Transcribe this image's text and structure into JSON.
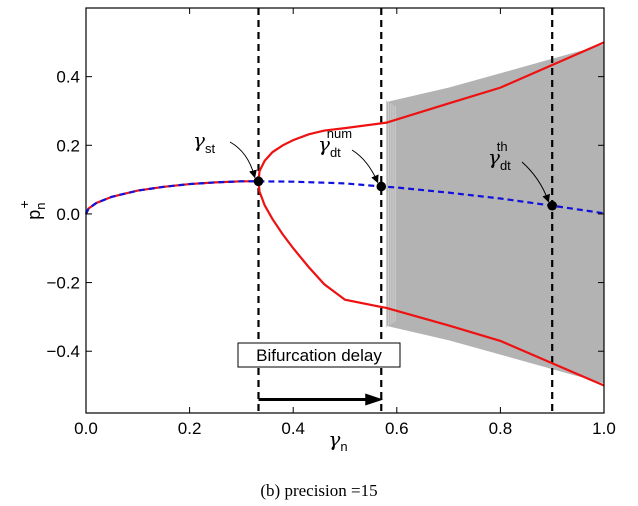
{
  "chart_data": {
    "type": "line",
    "caption": "(b)  precision =15",
    "xlabel": "γ",
    "xlabel_sub": "n",
    "ylabel": "p",
    "ylabel_sub": "n",
    "ylabel_sup": "+",
    "xlim": [
      0.0,
      1.0
    ],
    "ylim": [
      -0.58,
      0.6
    ],
    "xticks": [
      0.0,
      0.2,
      0.4,
      0.6,
      0.8,
      1.0
    ],
    "xtick_labels": [
      "0.0",
      "0.2",
      "0.4",
      "0.6",
      "0.8",
      "1.0"
    ],
    "yticks": [
      -0.4,
      -0.2,
      0.0,
      0.2,
      0.4
    ],
    "ytick_labels": [
      "−0.4",
      "−0.2",
      "0.0",
      "0.2",
      "0.4"
    ],
    "grid": false,
    "colors": {
      "red": "#ee1111",
      "blue": "#1111dd",
      "gray": "#b3b3b3",
      "black": "#000000"
    },
    "series": [
      {
        "style": "red-solid",
        "x": [
          0.0,
          0.005,
          0.02,
          0.05,
          0.1,
          0.15,
          0.2,
          0.25,
          0.3,
          0.333
        ],
        "y": [
          0.0,
          0.016,
          0.032,
          0.05,
          0.068,
          0.079,
          0.087,
          0.092,
          0.095,
          0.095
        ]
      },
      {
        "style": "blue-dashed",
        "x": [
          0.0,
          0.005,
          0.02,
          0.05,
          0.1,
          0.15,
          0.2,
          0.25,
          0.3,
          0.333,
          0.4,
          0.5,
          0.57,
          0.6,
          0.7,
          0.8,
          0.9,
          1.0
        ],
        "y": [
          0.0,
          0.016,
          0.032,
          0.05,
          0.068,
          0.079,
          0.087,
          0.092,
          0.095,
          0.095,
          0.094,
          0.089,
          0.08,
          0.077,
          0.062,
          0.045,
          0.024,
          0.002
        ]
      },
      {
        "style": "red-solid",
        "x": [
          0.333,
          0.335,
          0.345,
          0.36,
          0.38,
          0.4,
          0.43,
          0.46,
          0.5,
          0.58,
          0.7,
          0.8,
          0.9,
          1.0
        ],
        "y": [
          0.095,
          0.125,
          0.155,
          0.18,
          0.2,
          0.215,
          0.232,
          0.243,
          0.25,
          0.266,
          0.322,
          0.368,
          0.434,
          0.5
        ]
      },
      {
        "style": "red-solid",
        "x": [
          0.333,
          0.335,
          0.345,
          0.36,
          0.38,
          0.4,
          0.43,
          0.46,
          0.5,
          0.58,
          0.7,
          0.8,
          0.9,
          1.0
        ],
        "y": [
          0.095,
          0.065,
          0.025,
          -0.015,
          -0.06,
          -0.1,
          -0.155,
          -0.205,
          -0.25,
          -0.274,
          -0.325,
          -0.37,
          -0.435,
          -0.5
        ]
      }
    ],
    "shaded_region": {
      "x_start": 0.58,
      "x": [
        0.58,
        0.7,
        0.8,
        0.9,
        1.0
      ],
      "y_upper": [
        0.326,
        0.368,
        0.41,
        0.452,
        0.494
      ],
      "y_lower": [
        -0.326,
        -0.368,
        -0.41,
        -0.452,
        -0.494
      ]
    },
    "vlines": [
      0.333,
      0.57,
      0.9
    ],
    "points": [
      {
        "x": 0.333,
        "y": 0.095,
        "label": "γ",
        "sub": "st",
        "sup": ""
      },
      {
        "x": 0.57,
        "y": 0.08,
        "label": "γ",
        "sub": "dt",
        "sup": "num"
      },
      {
        "x": 0.9,
        "y": 0.024,
        "label": "γ",
        "sub": "dt",
        "sup": "th"
      }
    ],
    "delay_arrow": {
      "x_from": 0.333,
      "x_to": 0.57,
      "y": -0.5,
      "label": "Bifurcation delay"
    }
  }
}
